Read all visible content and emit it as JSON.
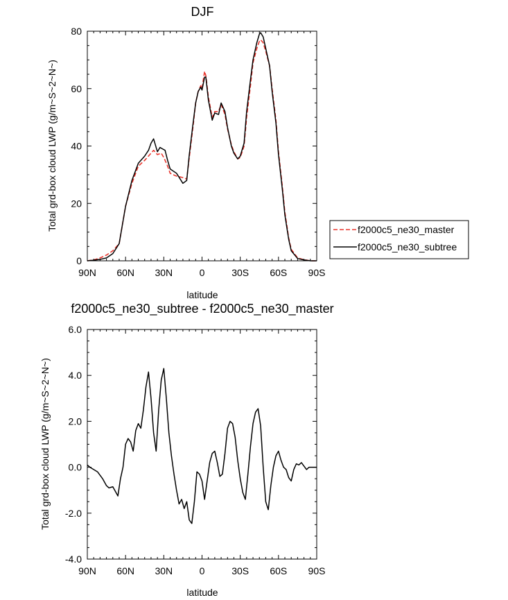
{
  "chart_data": [
    {
      "type": "line",
      "title": "DJF",
      "xlabel": "latitude",
      "ylabel": "Total grd-box cloud LWP (g/m~S~2~N~)",
      "xlim": [
        -90,
        90
      ],
      "ylim": [
        0,
        80
      ],
      "x_ticks": [
        -90,
        -60,
        -30,
        0,
        30,
        60,
        90
      ],
      "x_tick_labels": [
        "90N",
        "60N",
        "30N",
        "0",
        "30S",
        "60S",
        "90S"
      ],
      "y_ticks": [
        0,
        20,
        40,
        60,
        80
      ],
      "y_tick_labels": [
        "0",
        "20",
        "40",
        "60",
        "80"
      ],
      "legend": {
        "position": "right",
        "entries": [
          "f2000c5_ne30_master",
          "f2000c5_ne30_subtree"
        ]
      },
      "series": [
        {
          "name": "f2000c5_ne30_master",
          "color": "#e8342c",
          "style": "dashed",
          "x": [
            -90,
            -85,
            -80,
            -75,
            -70,
            -65,
            -60,
            -55,
            -50,
            -45,
            -42,
            -40,
            -38,
            -35,
            -32,
            -30,
            -27,
            -25,
            -20,
            -15,
            -12,
            -10,
            -7,
            -5,
            -3,
            -1,
            0,
            2,
            3,
            5,
            8,
            10,
            13,
            15,
            18,
            20,
            23,
            25,
            28,
            30,
            33,
            35,
            38,
            40,
            43,
            45,
            46,
            48,
            50,
            53,
            55,
            58,
            60,
            63,
            65,
            68,
            70,
            75,
            80,
            85,
            90
          ],
          "values": [
            0,
            0.3,
            1.0,
            2.0,
            3.5,
            6.0,
            19.0,
            27.0,
            33.0,
            35.0,
            36.5,
            37.5,
            38.5,
            37.0,
            37.5,
            36.0,
            33.0,
            30.5,
            29.5,
            29.0,
            28.5,
            36.0,
            47.0,
            55.0,
            59.0,
            61.0,
            60.0,
            66.0,
            64.5,
            57.0,
            50.0,
            52.0,
            52.0,
            54.5,
            51.0,
            46.0,
            40.5,
            38.0,
            35.5,
            36.0,
            40.0,
            50.0,
            61.0,
            69.0,
            74.0,
            76.5,
            77.0,
            76.0,
            73.0,
            68.0,
            60.0,
            49.0,
            38.0,
            26.0,
            17.0,
            8.0,
            4.0,
            1.0,
            0.4,
            0,
            0
          ]
        },
        {
          "name": "f2000c5_ne30_subtree",
          "color": "#000000",
          "style": "solid",
          "x": [
            -90,
            -85,
            -80,
            -75,
            -70,
            -65,
            -60,
            -55,
            -50,
            -45,
            -42,
            -40,
            -38,
            -35,
            -33,
            -31,
            -29,
            -27,
            -25,
            -20,
            -15,
            -12,
            -10,
            -7,
            -5,
            -3,
            -1,
            0,
            2,
            3,
            5,
            8,
            10,
            13,
            15,
            18,
            20,
            23,
            25,
            28,
            30,
            33,
            35,
            38,
            40,
            43,
            45,
            46,
            48,
            50,
            53,
            55,
            58,
            60,
            63,
            65,
            68,
            70,
            75,
            80,
            85,
            90
          ],
          "values": [
            0,
            0.2,
            0.5,
            1.0,
            2.5,
            6.0,
            19.0,
            28.0,
            34.0,
            36.5,
            38.5,
            41.0,
            42.5,
            38.0,
            39.5,
            39.0,
            38.5,
            35.0,
            32.0,
            30.5,
            27.0,
            28.0,
            37.0,
            48.0,
            55.0,
            59.0,
            60.5,
            59.5,
            64.0,
            64.0,
            56.0,
            49.0,
            51.5,
            51.0,
            55.0,
            52.0,
            46.5,
            40.0,
            37.5,
            35.5,
            36.5,
            41.0,
            52.0,
            63.0,
            70.0,
            76.0,
            79.0,
            79.5,
            78.0,
            74.0,
            68.0,
            59.0,
            48.0,
            37.0,
            25.0,
            16.0,
            7.5,
            3.5,
            0.8,
            0.3,
            0,
            0
          ]
        }
      ]
    },
    {
      "type": "line",
      "title": "f2000c5_ne30_subtree - f2000c5_ne30_master",
      "xlabel": "latitude",
      "ylabel": "Total grd-box cloud LWP (g/m~S~2~N~)",
      "xlim": [
        -90,
        90
      ],
      "ylim": [
        -4.0,
        6.0
      ],
      "x_ticks": [
        -90,
        -60,
        -30,
        0,
        30,
        60,
        90
      ],
      "x_tick_labels": [
        "90N",
        "60N",
        "30N",
        "0",
        "30S",
        "60S",
        "90S"
      ],
      "y_ticks": [
        -4.0,
        -2.0,
        0.0,
        2.0,
        4.0,
        6.0
      ],
      "y_tick_labels": [
        "-4.0",
        "-2.0",
        "0.0",
        "2.0",
        "4.0",
        "6.0"
      ],
      "series": [
        {
          "name": "f2000c5_ne30_subtree - f2000c5_ne30_master",
          "color": "#000000",
          "style": "solid",
          "x": [
            -90,
            -88,
            -85,
            -82,
            -80,
            -78,
            -75,
            -73,
            -70,
            -68,
            -66,
            -64,
            -62,
            -60,
            -58,
            -56,
            -54,
            -52,
            -50,
            -48,
            -46,
            -44,
            -42,
            -40,
            -38,
            -36,
            -34,
            -32,
            -30,
            -28,
            -26,
            -24,
            -22,
            -20,
            -18,
            -16,
            -14,
            -12,
            -10,
            -8,
            -6,
            -4,
            -2,
            0,
            2,
            4,
            6,
            8,
            10,
            12,
            14,
            16,
            18,
            20,
            22,
            24,
            26,
            28,
            30,
            32,
            34,
            36,
            38,
            40,
            42,
            44,
            46,
            48,
            50,
            52,
            54,
            56,
            58,
            60,
            62,
            64,
            66,
            68,
            70,
            72,
            74,
            76,
            78,
            80,
            82,
            84,
            86,
            88,
            90
          ],
          "values": [
            0.1,
            0.0,
            -0.1,
            -0.2,
            -0.35,
            -0.5,
            -0.8,
            -0.9,
            -0.85,
            -1.05,
            -1.25,
            -0.5,
            0.0,
            1.0,
            1.25,
            1.1,
            0.7,
            1.6,
            1.9,
            1.7,
            2.5,
            3.5,
            4.15,
            3.0,
            1.5,
            0.7,
            2.5,
            3.8,
            4.3,
            3.0,
            1.5,
            0.5,
            -0.3,
            -1.0,
            -1.6,
            -1.4,
            -1.8,
            -1.5,
            -2.3,
            -2.45,
            -1.5,
            -0.2,
            -0.3,
            -0.6,
            -1.4,
            -0.6,
            0.2,
            0.6,
            0.7,
            0.2,
            -0.4,
            -0.3,
            0.6,
            1.7,
            2.0,
            1.9,
            1.3,
            0.3,
            -0.5,
            -1.1,
            -1.4,
            -0.3,
            0.9,
            1.9,
            2.4,
            2.55,
            1.8,
            0.0,
            -1.5,
            -1.85,
            -0.8,
            0.0,
            0.5,
            0.7,
            0.3,
            0.0,
            -0.1,
            -0.45,
            -0.6,
            -0.1,
            0.15,
            0.1,
            0.2,
            0.05,
            -0.1,
            0.0,
            0.0,
            0.0,
            0.0
          ]
        }
      ]
    }
  ]
}
